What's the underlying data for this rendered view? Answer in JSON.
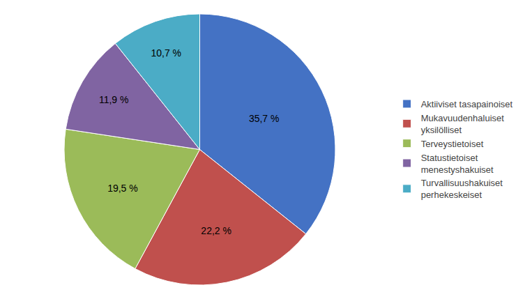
{
  "chart_data": {
    "type": "pie",
    "categories": [
      "Aktiiviset tasapainoiset",
      "Mukavuudenhaluiset\nyksilölliset",
      "Terveystietoiset",
      "Statustietoiset\nmenestyshakuiset",
      "Turvallisuushakuiset\nperhekeskeiset"
    ],
    "values": [
      35.7,
      22.2,
      19.5,
      11.9,
      10.7
    ],
    "value_labels": [
      "35,7 %",
      "22,2 %",
      "19,5 %",
      "11,9 %",
      "10,7 %"
    ],
    "colors": [
      "#4472c4",
      "#c0504d",
      "#9bbb59",
      "#8064a2",
      "#4bacc6"
    ],
    "data_labels": true,
    "legend": "right"
  }
}
